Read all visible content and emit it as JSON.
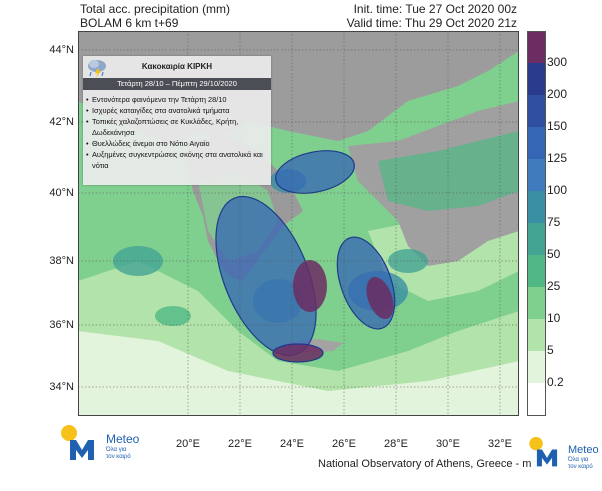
{
  "header": {
    "title_line1": "Total acc. precipitation (mm)",
    "title_line2": "BOLAM 6 km t+69",
    "init_time": "Init. time: Tue 27 Oct 2020 00z",
    "valid_time": "Valid time: Thu 29 Oct 2020 21z"
  },
  "lat_labels": [
    "44°N",
    "42°N",
    "40°N",
    "38°N",
    "36°N",
    "34°N"
  ],
  "lon_labels": [
    "20°E",
    "22°E",
    "24°E",
    "26°E",
    "28°E",
    "30°E",
    "32°E"
  ],
  "colorbar": {
    "labels": [
      "300",
      "200",
      "150",
      "125",
      "100",
      "75",
      "50",
      "25",
      "10",
      "5",
      "0.2"
    ],
    "colors": [
      "#6b2d62",
      "#2a3a8c",
      "#2f4fa0",
      "#3566b5",
      "#3f7bbd",
      "#3a8fa5",
      "#43a493",
      "#4fb884",
      "#7fcf8f",
      "#b2e3aa",
      "#e3f4dd",
      "#ffffff"
    ]
  },
  "info_box": {
    "title": "Κακοκαιρία ΚΙΡΚΗ",
    "subtitle": "Τετάρτη 28/10 – Πέμπτη 29/10/2020",
    "bullets": [
      "Εντονότερα φαινόμενα την Τετάρτη 28/10",
      "Ισχυρές καταιγίδες στα ανατολικά τμήματα",
      "Τοπικές χαλαζοπτώσεις σε Κυκλάδες, Κρήτη, Δωδεκάνησα",
      "Θυελλώδεις άνεμοι στο Νότιο Αιγαίο",
      "Αυξημένες συγκεντρώσεις σκόνης στα ανατολικά και νότια"
    ]
  },
  "footer": {
    "credit": "National Observatory of Athens, Greece - m",
    "logo_name": "Meteo",
    "logo_tagline_line1": "Όλα για",
    "logo_tagline_line2": "τον καιρό"
  }
}
